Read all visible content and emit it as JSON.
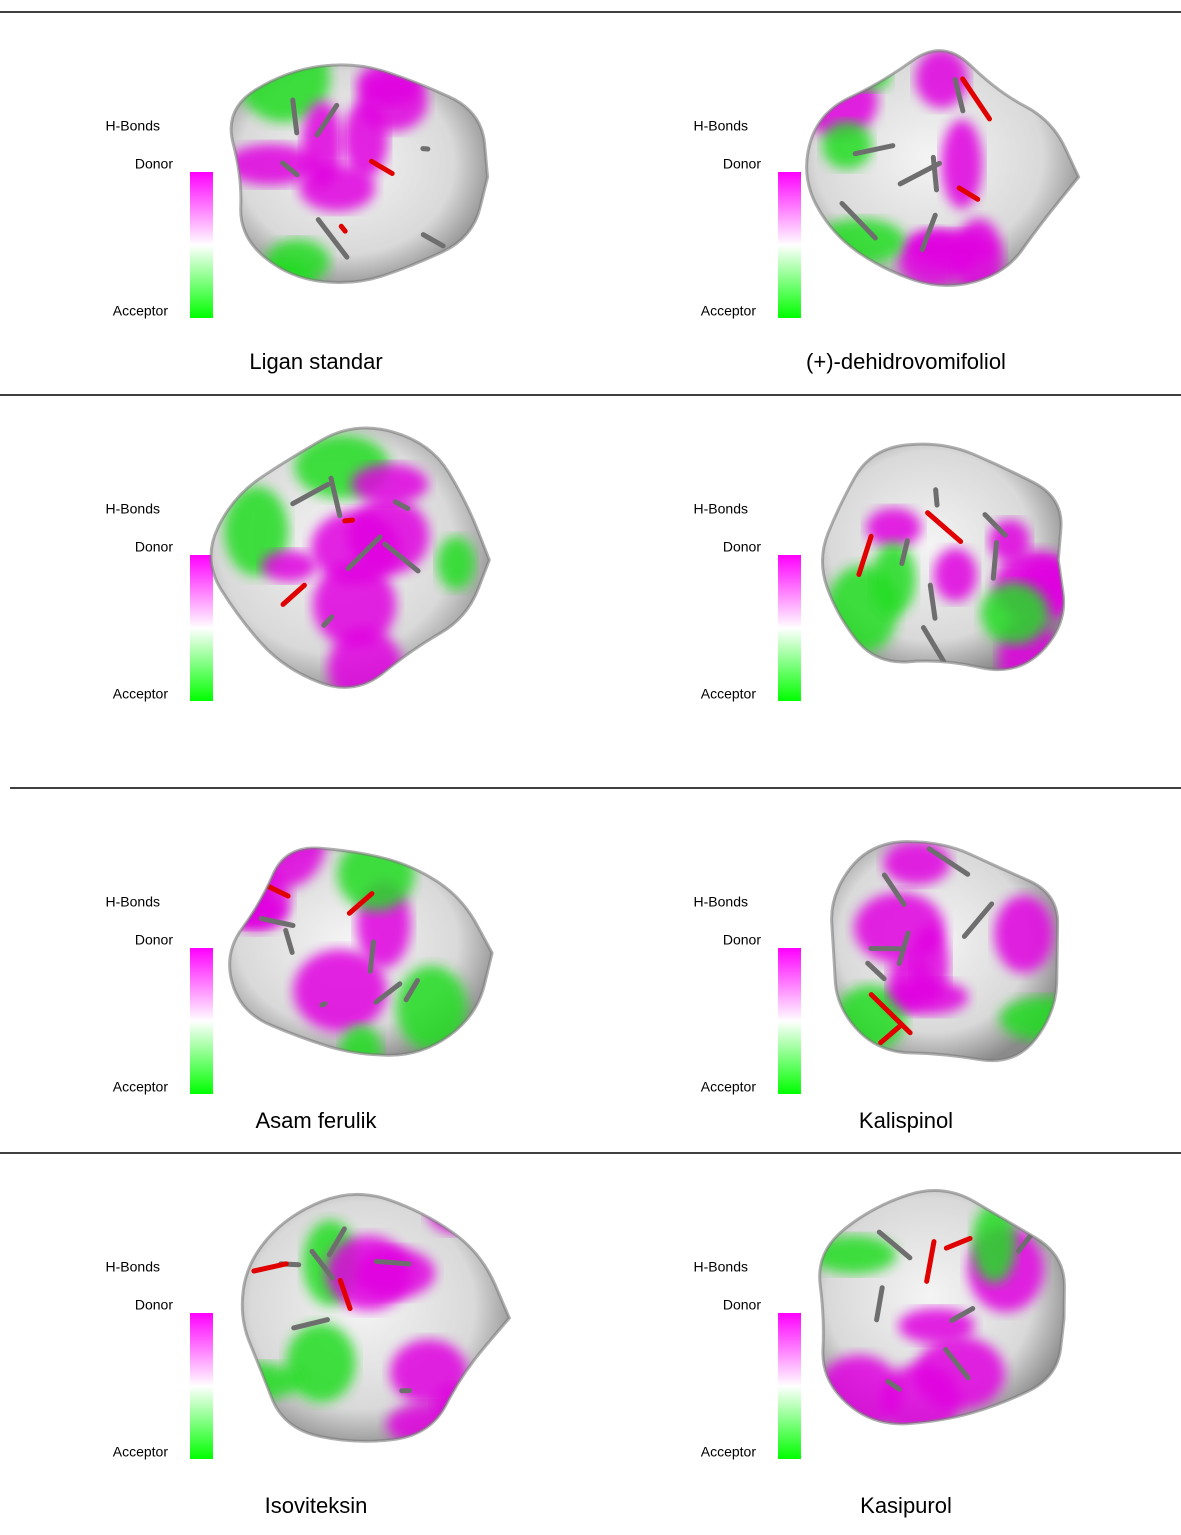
{
  "panels": [
    {
      "legend": {
        "title": "H-Bonds",
        "donor": "Donor",
        "acceptor": "Acceptor"
      },
      "caption": "Ligan standar"
    },
    {
      "legend": {
        "title": "H-Bonds",
        "donor": "Donor",
        "acceptor": "Acceptor"
      },
      "caption": "(+)-dehidrovomifoliol"
    },
    {
      "legend": {
        "title": "H-Bonds",
        "donor": "Donor",
        "acceptor": "Acceptor"
      }
    },
    {
      "legend": {
        "title": "H-Bonds",
        "donor": "Donor",
        "acceptor": "Acceptor"
      }
    },
    {
      "legend": {
        "title": "H-Bonds",
        "donor": "Donor",
        "acceptor": "Acceptor"
      },
      "caption": "Asam ferulik"
    },
    {
      "legend": {
        "title": "H-Bonds",
        "donor": "Donor",
        "acceptor": "Acceptor"
      },
      "caption": "Kalispinol"
    },
    {
      "legend": {
        "title": "H-Bonds",
        "donor": "Donor",
        "acceptor": "Acceptor"
      },
      "caption": "Isoviteksin"
    },
    {
      "legend": {
        "title": "H-Bonds",
        "donor": "Donor",
        "acceptor": "Acceptor"
      },
      "caption": "Kasipurol"
    }
  ]
}
